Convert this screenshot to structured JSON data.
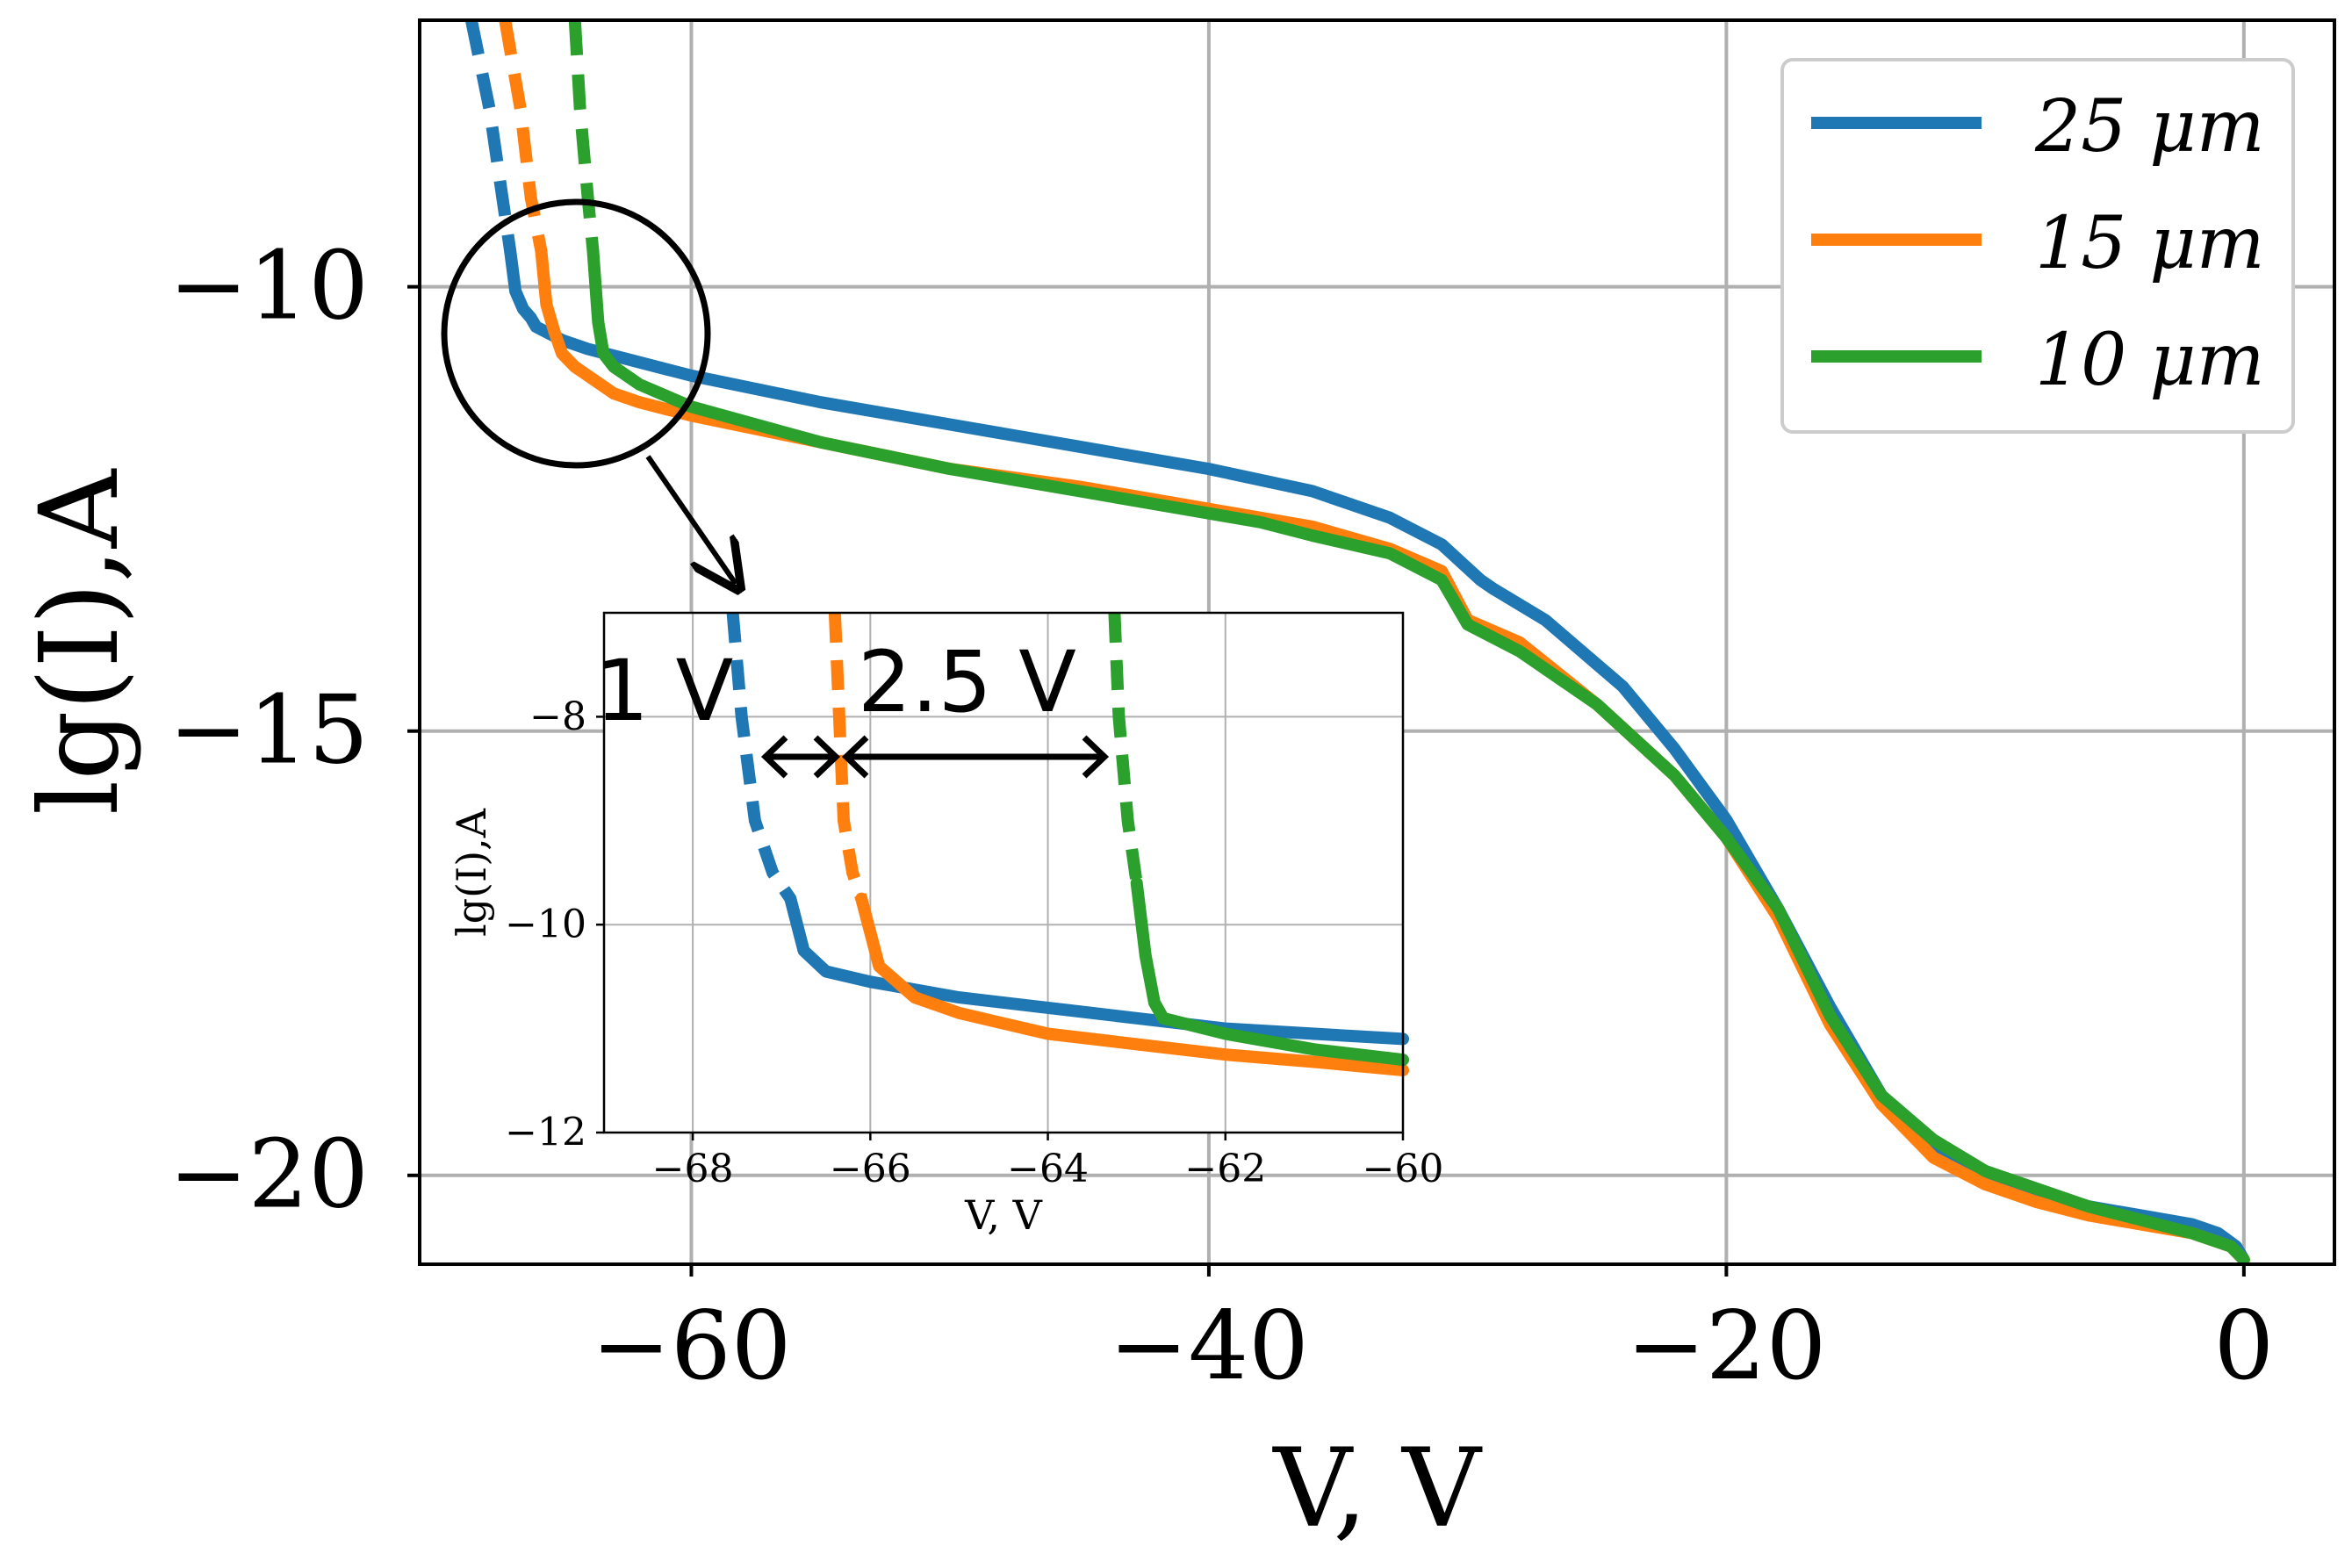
{
  "chart_data": [
    {
      "type": "line",
      "title": "",
      "xlabel": "V, V",
      "ylabel": "lg(I),A",
      "xlim": [
        -70.5,
        3.5
      ],
      "ylim": [
        -21,
        -7
      ],
      "xticks": [
        -60,
        -40,
        -20,
        0
      ],
      "yticks": [
        -10,
        -15,
        -20
      ],
      "xtick_labels": [
        "−60",
        "−40",
        "−20",
        "0"
      ],
      "ytick_labels": [
        "−10",
        "−15",
        "−20"
      ],
      "grid": true,
      "legend": "top-right",
      "series": [
        {
          "name": "25 μm",
          "color": "#1f77b4",
          "dashed_x": [
            -68.5,
            -67.8,
            -67.3,
            -67.0
          ],
          "dashed_y": [
            -7.0,
            -8.0,
            -9.0,
            -9.6
          ],
          "x": [
            -67.0,
            -66.8,
            -66.5,
            -66.2,
            -66.0,
            -65.0,
            -64.0,
            -62.0,
            -60.0,
            -55.0,
            -50.0,
            -45.0,
            -43.0,
            -40.0,
            -36.0,
            -33.0,
            -31.0,
            -29.5,
            -29.0,
            -27.0,
            -24.0,
            -22.0,
            -20.0,
            -18.0,
            -16.0,
            -14.0,
            -12.0,
            -10.0,
            -8.0,
            -6.0,
            -4.0,
            -2.0,
            -1.0,
            -0.3,
            0.0
          ],
          "y": [
            -9.6,
            -10.05,
            -10.25,
            -10.35,
            -10.45,
            -10.6,
            -10.7,
            -10.85,
            -11.0,
            -11.3,
            -11.55,
            -11.8,
            -11.9,
            -12.05,
            -12.3,
            -12.6,
            -12.9,
            -13.3,
            -13.4,
            -13.75,
            -14.5,
            -15.2,
            -16.0,
            -17.0,
            -18.1,
            -19.1,
            -19.7,
            -20.0,
            -20.2,
            -20.35,
            -20.45,
            -20.55,
            -20.65,
            -20.8,
            -20.95
          ]
        },
        {
          "name": "15 μm",
          "color": "#ff7f0e",
          "dashed_x": [
            -67.2,
            -66.6,
            -66.2,
            -65.8
          ],
          "dashed_y": [
            -7.0,
            -8.0,
            -9.0,
            -9.6
          ],
          "x": [
            -65.8,
            -65.6,
            -65.3,
            -65.0,
            -64.5,
            -64.0,
            -63.0,
            -62.0,
            -60.0,
            -55.0,
            -50.0,
            -45.0,
            -40.0,
            -36.0,
            -33.0,
            -31.0,
            -30.0,
            -28.0,
            -25.0,
            -22.0,
            -20.0,
            -18.0,
            -16.0,
            -14.0,
            -12.0,
            -10.0,
            -8.0,
            -6.0,
            -4.0,
            -2.0,
            -0.5,
            0.0
          ],
          "y": [
            -9.6,
            -10.2,
            -10.5,
            -10.75,
            -10.9,
            -11.0,
            -11.2,
            -11.3,
            -11.45,
            -11.75,
            -12.05,
            -12.25,
            -12.5,
            -12.7,
            -12.95,
            -13.2,
            -13.75,
            -14.0,
            -14.7,
            -15.5,
            -16.2,
            -17.1,
            -18.3,
            -19.2,
            -19.8,
            -20.1,
            -20.3,
            -20.45,
            -20.55,
            -20.65,
            -20.8,
            -20.95
          ]
        },
        {
          "name": "10 μm",
          "color": "#2ca02c",
          "dashed_x": [
            -64.5,
            -64.3,
            -64.0,
            -63.8
          ],
          "dashed_y": [
            -7.0,
            -8.0,
            -9.0,
            -9.6
          ],
          "x": [
            -63.8,
            -63.6,
            -63.4,
            -63.0,
            -62.0,
            -60.0,
            -55.0,
            -50.0,
            -45.0,
            -40.0,
            -38.0,
            -36.0,
            -33.0,
            -31.0,
            -30.0,
            -28.0,
            -25.0,
            -22.0,
            -20.0,
            -18.0,
            -16.0,
            -14.0,
            -12.0,
            -10.0,
            -8.0,
            -6.0,
            -4.0,
            -2.0,
            -0.5,
            0.0
          ],
          "y": [
            -9.6,
            -10.4,
            -10.75,
            -10.9,
            -11.1,
            -11.35,
            -11.75,
            -12.05,
            -12.3,
            -12.55,
            -12.65,
            -12.8,
            -13.0,
            -13.3,
            -13.8,
            -14.1,
            -14.7,
            -15.5,
            -16.2,
            -17.0,
            -18.2,
            -19.1,
            -19.6,
            -19.95,
            -20.15,
            -20.35,
            -20.5,
            -20.65,
            -20.8,
            -20.95
          ]
        }
      ]
    },
    {
      "type": "line",
      "title": "",
      "xlabel": "V, V",
      "ylabel": "lg(I),A",
      "xlim": [
        -69,
        -60
      ],
      "ylim": [
        -12,
        -7
      ],
      "xticks": [
        -68,
        -66,
        -64,
        -62,
        -60
      ],
      "yticks": [
        -8,
        -10,
        -12
      ],
      "xtick_labels": [
        "−68",
        "−66",
        "−64",
        "−62",
        "−60"
      ],
      "ytick_labels": [
        "−8",
        "−10",
        "−12"
      ],
      "grid": true,
      "annotations": [
        "1 V",
        "2.5 V"
      ],
      "series": [
        {
          "name": "25 μm",
          "color": "#1f77b4",
          "dashed_x": [
            -67.55,
            -67.45,
            -67.3,
            -67.1,
            -66.9
          ],
          "dashed_y": [
            -7.0,
            -8.0,
            -9.0,
            -9.5,
            -9.75
          ],
          "x": [
            -66.9,
            -66.75,
            -66.5,
            -66.0,
            -65.0,
            -64.0,
            -63.0,
            -62.0,
            -61.0,
            -60.0
          ],
          "y": [
            -9.75,
            -10.25,
            -10.45,
            -10.55,
            -10.7,
            -10.8,
            -10.9,
            -11.0,
            -11.05,
            -11.1
          ]
        },
        {
          "name": "15 μm",
          "color": "#ff7f0e",
          "dashed_x": [
            -66.4,
            -66.35,
            -66.3,
            -66.2,
            -66.1
          ],
          "dashed_y": [
            -7.0,
            -8.0,
            -9.0,
            -9.5,
            -9.75
          ],
          "x": [
            -66.1,
            -65.9,
            -65.7,
            -65.5,
            -65.0,
            -64.0,
            -63.0,
            -62.0,
            -61.0,
            -60.0
          ],
          "y": [
            -9.75,
            -10.4,
            -10.55,
            -10.7,
            -10.85,
            -11.05,
            -11.15,
            -11.25,
            -11.32,
            -11.4
          ]
        },
        {
          "name": "10 μm",
          "color": "#2ca02c",
          "dashed_x": [
            -63.25,
            -63.2,
            -63.1,
            -63.0
          ],
          "dashed_y": [
            -7.0,
            -8.0,
            -9.0,
            -9.6
          ],
          "x": [
            -63.0,
            -62.9,
            -62.8,
            -62.7,
            -62.0,
            -61.0,
            -60.0
          ],
          "y": [
            -9.6,
            -10.3,
            -10.75,
            -10.9,
            -11.05,
            -11.2,
            -11.3
          ]
        }
      ]
    }
  ],
  "legend": {
    "items": [
      {
        "label": "25 μm",
        "color": "#1f77b4"
      },
      {
        "label": "15 μm",
        "color": "#ff7f0e"
      },
      {
        "label": "10 μm",
        "color": "#2ca02c"
      }
    ]
  },
  "annotations": {
    "gap_1": "1 V",
    "gap_2": "2.5 V"
  }
}
